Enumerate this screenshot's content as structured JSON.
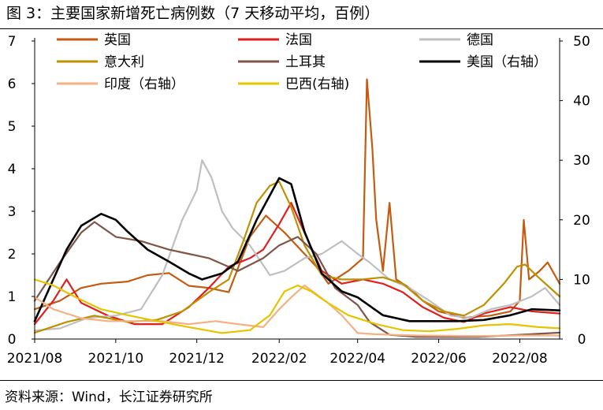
{
  "figure": {
    "title": "图 3：主要国家新增死亡病例数（7 天移动平均，百例）",
    "source": "资料来源：Wind，长江证券研究所"
  },
  "chart_data": {
    "type": "line",
    "x_type": "date",
    "x_range": [
      "2021-08-01",
      "2022-08-31"
    ],
    "x_ticks": [
      {
        "date": "2021-08-01",
        "label": "2021/08"
      },
      {
        "date": "2021-10-01",
        "label": "2021/10"
      },
      {
        "date": "2021-12-01",
        "label": "2021/12"
      },
      {
        "date": "2022-02-01",
        "label": "2022/02"
      },
      {
        "date": "2022-04-01",
        "label": "2022/04"
      },
      {
        "date": "2022-06-01",
        "label": "2022/06"
      },
      {
        "date": "2022-08-01",
        "label": "2022/08"
      }
    ],
    "y_left": {
      "min": 0,
      "max": 7,
      "ticks": [
        0,
        1,
        2,
        3,
        4,
        5,
        6,
        7
      ]
    },
    "y_right": {
      "min": 0,
      "max": 50,
      "ticks": [
        0,
        10,
        20,
        30,
        40,
        50
      ]
    },
    "grid": false,
    "legend_position": "top",
    "series": [
      {
        "name": "英国",
        "axis": "left",
        "color": "#C55A11",
        "points": [
          [
            "2021-08-01",
            0.7
          ],
          [
            "2021-08-20",
            0.9
          ],
          [
            "2021-09-05",
            1.2
          ],
          [
            "2021-09-20",
            1.3
          ],
          [
            "2021-10-10",
            1.35
          ],
          [
            "2021-10-25",
            1.5
          ],
          [
            "2021-11-10",
            1.55
          ],
          [
            "2021-11-25",
            1.25
          ],
          [
            "2021-12-10",
            1.2
          ],
          [
            "2021-12-25",
            1.1
          ],
          [
            "2022-01-10",
            2.4
          ],
          [
            "2022-01-22",
            2.9
          ],
          [
            "2022-02-05",
            2.5
          ],
          [
            "2022-02-20",
            2.0
          ],
          [
            "2022-03-01",
            1.7
          ],
          [
            "2022-03-10",
            1.3
          ],
          [
            "2022-03-25",
            1.6
          ],
          [
            "2022-04-05",
            1.9
          ],
          [
            "2022-04-08",
            6.1
          ],
          [
            "2022-04-12",
            4.5
          ],
          [
            "2022-04-15",
            2.8
          ],
          [
            "2022-04-20",
            1.6
          ],
          [
            "2022-04-25",
            3.2
          ],
          [
            "2022-04-30",
            1.4
          ],
          [
            "2022-05-10",
            1.2
          ],
          [
            "2022-05-20",
            0.9
          ],
          [
            "2022-06-01",
            0.65
          ],
          [
            "2022-06-20",
            0.5
          ],
          [
            "2022-07-10",
            0.55
          ],
          [
            "2022-07-25",
            0.65
          ],
          [
            "2022-08-01",
            0.9
          ],
          [
            "2022-08-04",
            2.8
          ],
          [
            "2022-08-08",
            1.4
          ],
          [
            "2022-08-16",
            1.6
          ],
          [
            "2022-08-22",
            1.8
          ],
          [
            "2022-08-31",
            1.3
          ]
        ]
      },
      {
        "name": "法国",
        "axis": "left",
        "color": "#E02020",
        "points": [
          [
            "2021-08-01",
            0.35
          ],
          [
            "2021-08-15",
            0.9
          ],
          [
            "2021-08-25",
            1.4
          ],
          [
            "2021-09-05",
            0.85
          ],
          [
            "2021-09-25",
            0.55
          ],
          [
            "2021-10-15",
            0.35
          ],
          [
            "2021-11-05",
            0.35
          ],
          [
            "2021-11-25",
            0.75
          ],
          [
            "2021-12-10",
            1.2
          ],
          [
            "2021-12-25",
            1.7
          ],
          [
            "2022-01-10",
            1.9
          ],
          [
            "2022-01-20",
            2.1
          ],
          [
            "2022-02-01",
            2.7
          ],
          [
            "2022-02-10",
            3.2
          ],
          [
            "2022-02-20",
            2.5
          ],
          [
            "2022-03-05",
            1.6
          ],
          [
            "2022-03-20",
            1.3
          ],
          [
            "2022-04-05",
            1.4
          ],
          [
            "2022-04-20",
            1.3
          ],
          [
            "2022-05-05",
            1.1
          ],
          [
            "2022-05-20",
            0.75
          ],
          [
            "2022-06-05",
            0.5
          ],
          [
            "2022-06-20",
            0.4
          ],
          [
            "2022-07-05",
            0.6
          ],
          [
            "2022-07-25",
            0.75
          ],
          [
            "2022-08-10",
            0.65
          ],
          [
            "2022-08-31",
            0.6
          ]
        ]
      },
      {
        "name": "德国",
        "axis": "left",
        "color": "#BFBFBF",
        "points": [
          [
            "2021-08-01",
            0.2
          ],
          [
            "2021-08-20",
            0.25
          ],
          [
            "2021-09-10",
            0.5
          ],
          [
            "2021-10-01",
            0.55
          ],
          [
            "2021-10-20",
            0.7
          ],
          [
            "2021-11-05",
            1.5
          ],
          [
            "2021-11-20",
            2.8
          ],
          [
            "2021-12-01",
            3.5
          ],
          [
            "2021-12-05",
            4.2
          ],
          [
            "2021-12-12",
            3.8
          ],
          [
            "2021-12-20",
            3.0
          ],
          [
            "2021-12-28",
            2.6
          ],
          [
            "2022-01-10",
            2.2
          ],
          [
            "2022-01-25",
            1.5
          ],
          [
            "2022-02-05",
            1.6
          ],
          [
            "2022-02-20",
            1.9
          ],
          [
            "2022-03-05",
            2.0
          ],
          [
            "2022-03-20",
            2.3
          ],
          [
            "2022-04-01",
            2.0
          ],
          [
            "2022-04-10",
            1.8
          ],
          [
            "2022-04-25",
            1.4
          ],
          [
            "2022-05-10",
            1.2
          ],
          [
            "2022-05-25",
            0.9
          ],
          [
            "2022-06-10",
            0.55
          ],
          [
            "2022-06-25",
            0.5
          ],
          [
            "2022-07-10",
            0.7
          ],
          [
            "2022-07-25",
            0.8
          ],
          [
            "2022-08-10",
            1.0
          ],
          [
            "2022-08-20",
            1.2
          ],
          [
            "2022-08-31",
            0.8
          ]
        ]
      },
      {
        "name": "意大利",
        "axis": "left",
        "color": "#BF9000",
        "points": [
          [
            "2021-08-01",
            0.15
          ],
          [
            "2021-08-25",
            0.4
          ],
          [
            "2021-09-15",
            0.55
          ],
          [
            "2021-10-10",
            0.4
          ],
          [
            "2021-11-01",
            0.45
          ],
          [
            "2021-11-20",
            0.65
          ],
          [
            "2021-12-10",
            1.1
          ],
          [
            "2021-12-25",
            1.4
          ],
          [
            "2022-01-05",
            2.3
          ],
          [
            "2022-01-15",
            3.2
          ],
          [
            "2022-01-25",
            3.6
          ],
          [
            "2022-02-01",
            3.7
          ],
          [
            "2022-02-10",
            3.1
          ],
          [
            "2022-02-20",
            2.2
          ],
          [
            "2022-03-05",
            1.5
          ],
          [
            "2022-03-20",
            1.4
          ],
          [
            "2022-04-05",
            1.4
          ],
          [
            "2022-04-20",
            1.45
          ],
          [
            "2022-05-05",
            1.3
          ],
          [
            "2022-05-20",
            0.9
          ],
          [
            "2022-06-05",
            0.65
          ],
          [
            "2022-06-20",
            0.55
          ],
          [
            "2022-07-05",
            0.8
          ],
          [
            "2022-07-20",
            1.3
          ],
          [
            "2022-07-30",
            1.7
          ],
          [
            "2022-08-05",
            1.75
          ],
          [
            "2022-08-15",
            1.45
          ],
          [
            "2022-08-31",
            1.0
          ]
        ]
      },
      {
        "name": "土耳其",
        "axis": "left",
        "color": "#7F5548",
        "points": [
          [
            "2021-08-01",
            0.9
          ],
          [
            "2021-08-20",
            1.8
          ],
          [
            "2021-09-05",
            2.5
          ],
          [
            "2021-09-15",
            2.75
          ],
          [
            "2021-10-01",
            2.4
          ],
          [
            "2021-10-20",
            2.3
          ],
          [
            "2021-11-10",
            2.1
          ],
          [
            "2021-11-25",
            2.0
          ],
          [
            "2021-12-10",
            1.9
          ],
          [
            "2022-01-01",
            1.6
          ],
          [
            "2022-01-20",
            1.9
          ],
          [
            "2022-02-01",
            2.2
          ],
          [
            "2022-02-15",
            2.4
          ],
          [
            "2022-03-01",
            2.0
          ],
          [
            "2022-03-15",
            1.2
          ],
          [
            "2022-04-01",
            0.8
          ],
          [
            "2022-04-10",
            0.4
          ],
          [
            "2022-04-25",
            0.1
          ],
          [
            "2022-05-15",
            0.05
          ],
          [
            "2022-07-01",
            0.05
          ],
          [
            "2022-08-01",
            0.1
          ],
          [
            "2022-08-31",
            0.15
          ]
        ]
      },
      {
        "name": "美国（右轴）",
        "axis": "right",
        "color": "#000000",
        "points": [
          [
            "2021-08-01",
            3
          ],
          [
            "2021-08-15",
            10
          ],
          [
            "2021-08-25",
            15
          ],
          [
            "2021-09-05",
            19
          ],
          [
            "2021-09-20",
            21
          ],
          [
            "2021-10-01",
            20
          ],
          [
            "2021-10-10",
            18
          ],
          [
            "2021-10-25",
            15
          ],
          [
            "2021-11-10",
            13
          ],
          [
            "2021-11-25",
            11
          ],
          [
            "2021-12-05",
            10
          ],
          [
            "2021-12-20",
            11
          ],
          [
            "2022-01-01",
            13
          ],
          [
            "2022-01-15",
            20
          ],
          [
            "2022-02-01",
            27
          ],
          [
            "2022-02-10",
            26
          ],
          [
            "2022-02-20",
            18
          ],
          [
            "2022-03-05",
            11
          ],
          [
            "2022-03-20",
            8
          ],
          [
            "2022-04-01",
            7
          ],
          [
            "2022-04-20",
            4
          ],
          [
            "2022-05-10",
            3
          ],
          [
            "2022-05-25",
            3
          ],
          [
            "2022-06-15",
            3
          ],
          [
            "2022-07-05",
            3.2
          ],
          [
            "2022-07-25",
            4
          ],
          [
            "2022-08-10",
            5
          ],
          [
            "2022-08-31",
            4.8
          ]
        ]
      },
      {
        "name": "印度（右轴）",
        "axis": "right",
        "color": "#F4B183",
        "points": [
          [
            "2021-08-01",
            7
          ],
          [
            "2021-08-15",
            5
          ],
          [
            "2021-09-05",
            3.5
          ],
          [
            "2021-09-25",
            3
          ],
          [
            "2021-10-15",
            3
          ],
          [
            "2021-11-05",
            3
          ],
          [
            "2021-11-25",
            2.5
          ],
          [
            "2021-12-15",
            3
          ],
          [
            "2022-01-01",
            2.5
          ],
          [
            "2022-01-20",
            2
          ],
          [
            "2022-02-01",
            5
          ],
          [
            "2022-02-10",
            7
          ],
          [
            "2022-02-20",
            9
          ],
          [
            "2022-03-01",
            7.5
          ],
          [
            "2022-03-10",
            6
          ],
          [
            "2022-03-20",
            4
          ],
          [
            "2022-04-01",
            1
          ],
          [
            "2022-04-15",
            0.8
          ],
          [
            "2022-05-15",
            0.6
          ],
          [
            "2022-07-01",
            0.5
          ],
          [
            "2022-08-01",
            0.6
          ],
          [
            "2022-08-31",
            0.6
          ]
        ]
      },
      {
        "name": "巴西(右轴)",
        "axis": "right",
        "color": "#E5C400",
        "points": [
          [
            "2021-08-01",
            10
          ],
          [
            "2021-08-15",
            9
          ],
          [
            "2021-09-01",
            7
          ],
          [
            "2021-09-20",
            5
          ],
          [
            "2021-10-10",
            4
          ],
          [
            "2021-11-01",
            3
          ],
          [
            "2021-11-25",
            2
          ],
          [
            "2021-12-20",
            1
          ],
          [
            "2022-01-10",
            1.5
          ],
          [
            "2022-01-25",
            4
          ],
          [
            "2022-02-05",
            8
          ],
          [
            "2022-02-15",
            9
          ],
          [
            "2022-02-25",
            8
          ],
          [
            "2022-03-10",
            6
          ],
          [
            "2022-03-25",
            4
          ],
          [
            "2022-04-15",
            2.5
          ],
          [
            "2022-05-05",
            1.5
          ],
          [
            "2022-05-25",
            1.3
          ],
          [
            "2022-06-15",
            1.7
          ],
          [
            "2022-07-05",
            2.3
          ],
          [
            "2022-07-25",
            2.5
          ],
          [
            "2022-08-15",
            2
          ],
          [
            "2022-08-31",
            1.8
          ]
        ]
      }
    ]
  }
}
